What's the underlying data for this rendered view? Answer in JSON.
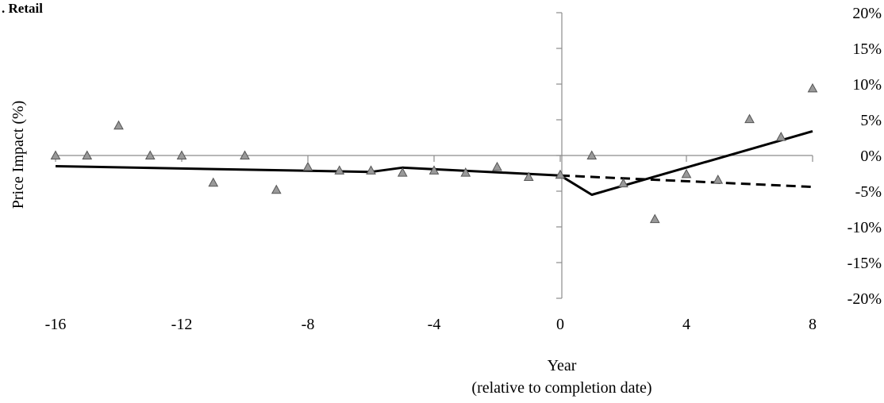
{
  "chart_data": {
    "type": "scatter",
    "title": ". Retail",
    "xlabel": "Year",
    "xlabel_sub": "(relative to completion date)",
    "ylabel": "Price Impact (%)",
    "xlim": [
      -16,
      8
    ],
    "ylim": [
      -20,
      20
    ],
    "x_ticks": [
      -16,
      -12,
      -8,
      -4,
      0,
      4,
      8
    ],
    "y_ticks": [
      20,
      15,
      10,
      5,
      0,
      -5,
      -10,
      -15,
      -20
    ],
    "y_tick_labels": [
      "20%",
      "15%",
      "10%",
      "5%",
      "0%",
      "-5%",
      "-10%",
      "-15%",
      "-20%"
    ],
    "series": [
      {
        "type": "scatter",
        "color": "#999999",
        "marker": "triangle",
        "points": [
          {
            "x": -16,
            "y": 0.0
          },
          {
            "x": -15,
            "y": 0.0
          },
          {
            "x": -14,
            "y": 4.2
          },
          {
            "x": -13,
            "y": 0.0
          },
          {
            "x": -12,
            "y": 0.0
          },
          {
            "x": -11,
            "y": -3.8
          },
          {
            "x": -10,
            "y": 0.0
          },
          {
            "x": -9,
            "y": -4.8
          },
          {
            "x": -8,
            "y": -1.6
          },
          {
            "x": -7,
            "y": -2.1
          },
          {
            "x": -6,
            "y": -2.1
          },
          {
            "x": -5,
            "y": -2.4
          },
          {
            "x": -4,
            "y": -2.1
          },
          {
            "x": -3,
            "y": -2.4
          },
          {
            "x": -2,
            "y": -1.6
          },
          {
            "x": -1,
            "y": -3.0
          },
          {
            "x": 0,
            "y": -2.7
          },
          {
            "x": 1,
            "y": 0.0
          },
          {
            "x": 2,
            "y": -3.9
          },
          {
            "x": 3,
            "y": -8.9
          },
          {
            "x": 4,
            "y": -2.6
          },
          {
            "x": 5,
            "y": -3.4
          },
          {
            "x": 6,
            "y": 5.1
          },
          {
            "x": 7,
            "y": 2.6
          },
          {
            "x": 8,
            "y": 9.4
          }
        ]
      },
      {
        "type": "line",
        "style": "solid",
        "color": "#000000",
        "points": [
          {
            "x": -16,
            "y": -1.5
          },
          {
            "x": -6,
            "y": -2.3
          },
          {
            "x": -5,
            "y": -1.7
          },
          {
            "x": 0,
            "y": -2.8
          },
          {
            "x": 1,
            "y": -5.5
          },
          {
            "x": 8,
            "y": 3.4
          }
        ]
      },
      {
        "type": "line",
        "style": "dashed",
        "color": "#000000",
        "points": [
          {
            "x": 0,
            "y": -2.8
          },
          {
            "x": 8,
            "y": -4.4
          }
        ]
      }
    ]
  }
}
